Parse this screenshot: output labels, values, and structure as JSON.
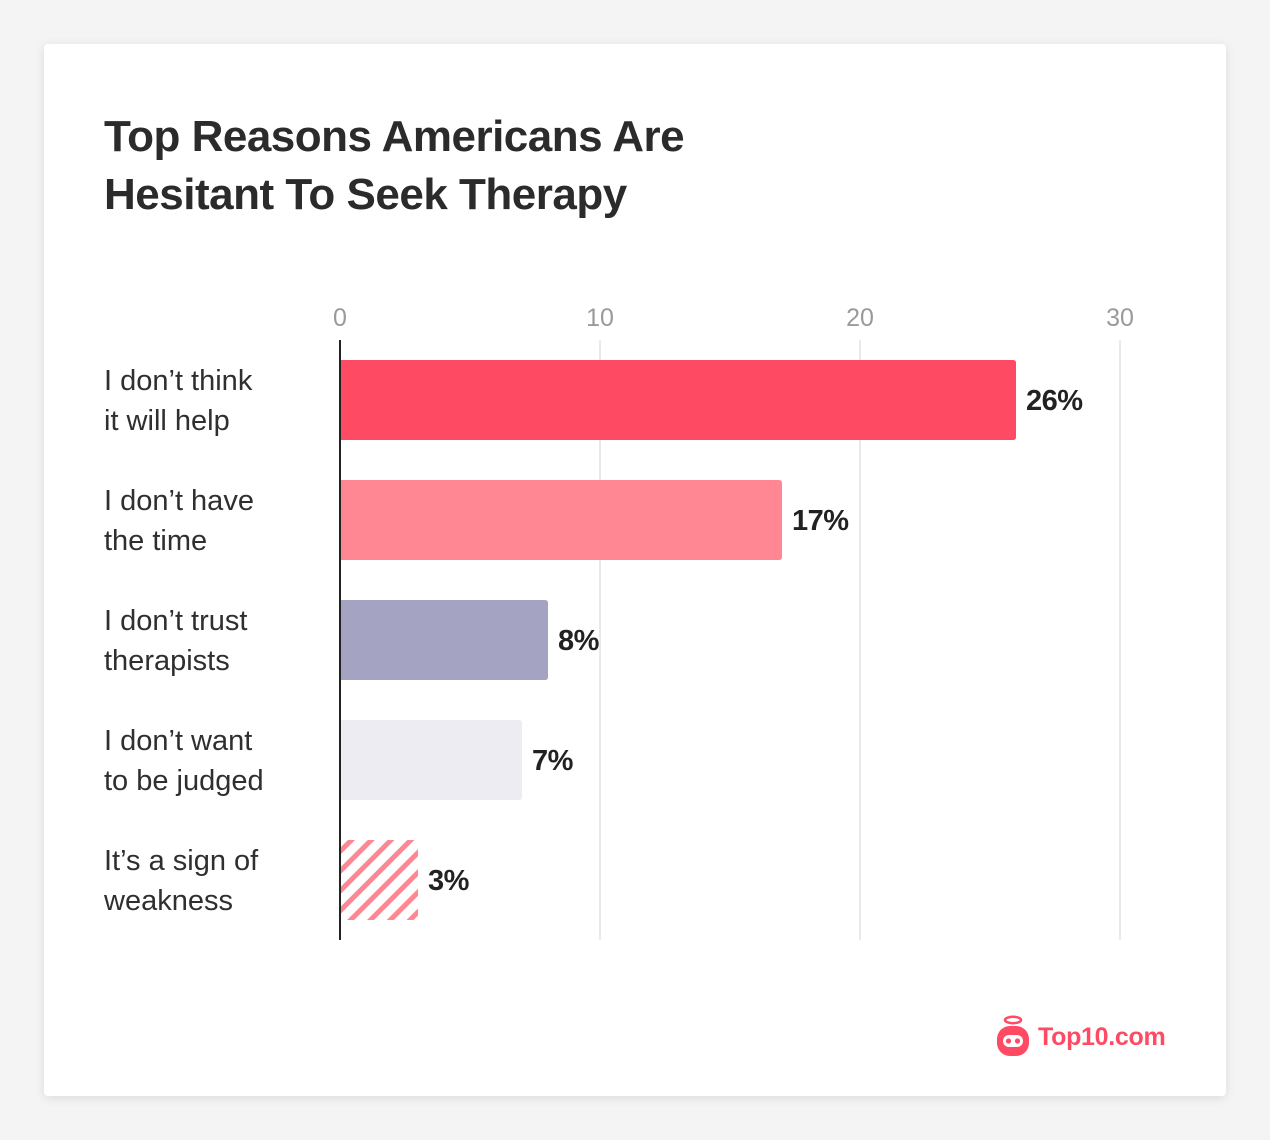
{
  "chart_data": {
    "type": "bar",
    "orientation": "horizontal",
    "title_lines": [
      "Top Reasons Americans Are",
      "Hesitant To Seek Therapy"
    ],
    "categories": [
      [
        "I don’t think",
        "it will help"
      ],
      [
        "I don’t have",
        "the time"
      ],
      [
        "I don’t trust",
        "therapists"
      ],
      [
        "I don’t want",
        "to be judged"
      ],
      [
        "It’s a sign of",
        "weakness"
      ]
    ],
    "values": [
      26,
      17,
      8,
      7,
      3
    ],
    "value_labels": [
      "26%",
      "17%",
      "8%",
      "7%",
      "3%"
    ],
    "bar_colors": [
      "#ff4a63",
      "#ff8793",
      "#a4a4c2",
      "#ececf2",
      "hatched-pink"
    ],
    "xlim": [
      0,
      30
    ],
    "xticks": [
      0,
      10,
      20,
      30
    ],
    "xtick_labels": [
      "0",
      "10",
      "20",
      "30"
    ],
    "grid": true,
    "legend": "none"
  },
  "brand": {
    "name": "Top10.com",
    "color": "#ff4a63",
    "icon": "robot-logo-icon"
  }
}
